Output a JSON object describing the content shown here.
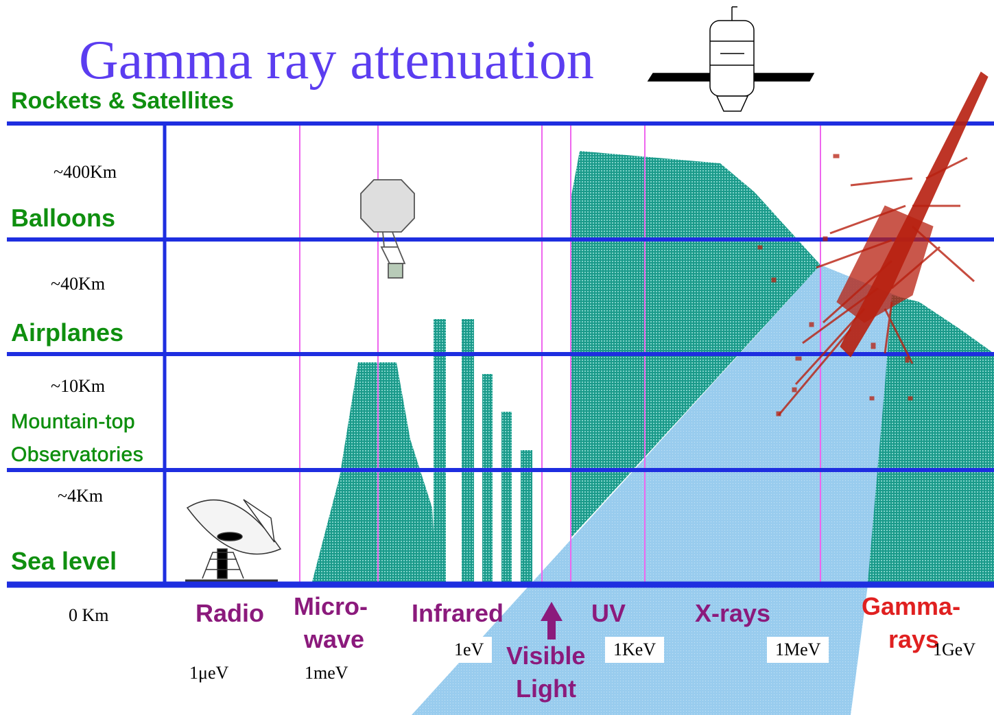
{
  "title": "Gamma ray attenuation",
  "altitude_levels": [
    {
      "label": "Rockets & Satellites"
    },
    {
      "label": "Balloons",
      "height": "~400Km"
    },
    {
      "label": "Airplanes",
      "height": "~40Km"
    },
    {
      "label": "Mountain-top",
      "label2": "Observatories",
      "height": "~10Km"
    },
    {
      "label": "Sea level",
      "height": "~4Km"
    },
    {
      "height": "0 Km"
    }
  ],
  "bands": {
    "radio": "Radio",
    "microwave": [
      "Micro-",
      "wave"
    ],
    "infrared": "Infrared",
    "visible": [
      "Visible",
      "Light"
    ],
    "uv": "UV",
    "xrays": "X-rays",
    "gamma": [
      "Gamma-",
      "rays"
    ]
  },
  "energies": [
    "1μeV",
    "1meV",
    "1eV",
    "1KeV",
    "1MeV",
    "1GeV"
  ],
  "colors": {
    "title": "#5b3df0",
    "grid": "#1e2ee0",
    "divider": "#ee66ee",
    "altitude_label": "#0f8f0f",
    "band_label": "#8b1a7c",
    "gamma_label": "#e02020",
    "absorption": "#1a9a8a",
    "cone": "#99ccee",
    "shower": "#b82010"
  },
  "icons": [
    "satellite-icon",
    "balloon-icon",
    "radio-dish-icon",
    "particle-shower-icon",
    "arrow-up-icon"
  ]
}
